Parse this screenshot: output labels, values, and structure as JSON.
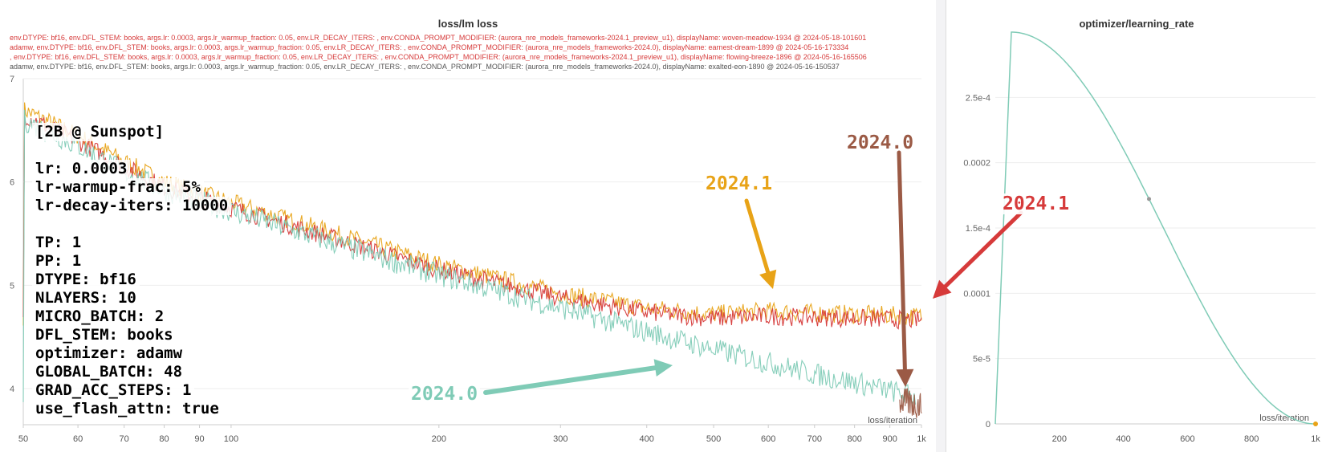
{
  "left_panel": {
    "title": "loss/lm loss",
    "legend": [
      {
        "text": "env.DTYPE: bf16, env.DFL_STEM: books, args.lr: 0.0003, args.lr_warmup_fraction: 0.05, env.LR_DECAY_ITERS: , env.CONDA_PROMPT_MODIFIER: (aurora_nre_models_frameworks-2024.1_preview_u1), displayName: woven-meadow-1934 @ 2024-05-18-101601",
        "color": "#d63a3a"
      },
      {
        "text": "adamw, env.DTYPE: bf16, env.DFL_STEM: books, args.lr: 0.0003, args.lr_warmup_fraction: 0.05, env.LR_DECAY_ITERS: , env.CONDA_PROMPT_MODIFIER: (aurora_nre_models_frameworks-2024.0), displayName: earnest-dream-1899 @ 2024-05-16-173334",
        "color": "#d63a3a"
      },
      {
        "text": ", env.DTYPE: bf16, env.DFL_STEM: books, args.lr: 0.0003, args.lr_warmup_fraction: 0.05, env.LR_DECAY_ITERS: , env.CONDA_PROMPT_MODIFIER: (aurora_nre_models_frameworks-2024.1_preview_u1), displayName: flowing-breeze-1896 @ 2024-05-16-165506",
        "color": "#d63a3a"
      },
      {
        "text": "adamw, env.DTYPE: bf16, env.DFL_STEM: books, args.lr: 0.0003, args.lr_warmup_fraction: 0.05, env.LR_DECAY_ITERS: , env.CONDA_PROMPT_MODIFIER: (aurora_nre_models_frameworks-2024.0), displayName: exalted-eon-1890 @ 2024-05-16-150537",
        "color": "#555555"
      }
    ],
    "info_lines": [
      "[2B @ Sunspot]",
      "",
      "lr: 0.0003",
      "lr-warmup-frac: 5%",
      "lr-decay-iters: 10000",
      "",
      "TP: 1",
      "PP: 1",
      "DTYPE: bf16",
      "NLAYERS: 10",
      "MICRO_BATCH: 2",
      "DFL_STEM: books",
      "optimizer: adamw",
      "GLOBAL_BATCH: 48",
      "GRAD_ACC_STEPS: 1",
      "use_flash_attn: true"
    ],
    "annotations": {
      "orange": {
        "text": "2024.1",
        "color": "#e8a317"
      },
      "red": {
        "text": "2024.1",
        "color": "#d63a3a"
      },
      "brown": {
        "text": "2024.0",
        "color": "#9b5a45"
      },
      "teal": {
        "text": "2024.0",
        "color": "#7fcbb6"
      }
    }
  },
  "right_panel": {
    "title": "optimizer/learning_rate"
  },
  "chart_data": [
    {
      "type": "line",
      "title": "loss/lm loss",
      "xlabel": "loss/iteration",
      "ylabel": "",
      "x_scale": "log",
      "xlim": [
        50,
        1000
      ],
      "ylim": [
        3.65,
        7.0
      ],
      "x_ticks": [
        50,
        60,
        70,
        80,
        90,
        100,
        200,
        300,
        400,
        500,
        600,
        700,
        800,
        900,
        1000
      ],
      "x_tick_labels": [
        "50",
        "60",
        "70",
        "80",
        "90",
        "100",
        "200",
        "300",
        "400",
        "500",
        "600",
        "700",
        "800",
        "900",
        "1k"
      ],
      "y_ticks": [
        4,
        5,
        6,
        7
      ],
      "y_tick_labels": [
        "4",
        "5",
        "6",
        "7"
      ],
      "grid": true,
      "series": [
        {
          "color": "#e8a317",
          "x": [
            50,
            60,
            70,
            80,
            100,
            150,
            200,
            300,
            400,
            500,
            600,
            700,
            800,
            900,
            1000
          ],
          "y": [
            6.7,
            6.45,
            6.2,
            6.0,
            5.8,
            5.45,
            5.2,
            4.92,
            4.78,
            4.72,
            4.75,
            4.73,
            4.72,
            4.71,
            4.7
          ]
        },
        {
          "color": "#d63a3a",
          "x": [
            50,
            60,
            70,
            80,
            100,
            150,
            200,
            300,
            400,
            500,
            600,
            700,
            800,
            900,
            1000
          ],
          "y": [
            6.65,
            6.4,
            6.15,
            5.95,
            5.75,
            5.4,
            5.15,
            4.88,
            4.74,
            4.68,
            4.7,
            4.69,
            4.68,
            4.67,
            4.66
          ]
        },
        {
          "color": "#7fcbb6",
          "x": [
            50,
            60,
            70,
            80,
            100,
            150,
            200,
            300,
            400,
            500,
            600,
            700,
            800,
            900,
            980
          ],
          "y": [
            6.6,
            6.35,
            6.1,
            5.92,
            5.72,
            5.35,
            5.1,
            4.78,
            4.55,
            4.38,
            4.25,
            4.14,
            4.06,
            3.98,
            3.92
          ]
        },
        {
          "color": "#9b5a45",
          "x": [
            930,
            960,
            990,
            1000
          ],
          "y": [
            3.88,
            3.86,
            3.84,
            3.84
          ]
        }
      ]
    },
    {
      "type": "line",
      "title": "optimizer/learning_rate",
      "xlabel": "loss/iteration",
      "ylabel": "",
      "xlim": [
        0,
        1000
      ],
      "ylim": [
        0,
        0.0003
      ],
      "x_ticks": [
        200,
        400,
        600,
        800,
        1000
      ],
      "x_tick_labels": [
        "200",
        "400",
        "600",
        "800",
        "1k"
      ],
      "y_ticks": [
        0,
        5e-05,
        0.0001,
        0.00015,
        0.0002,
        0.00025
      ],
      "y_tick_labels": [
        "0",
        "5e-5",
        "0.0001",
        "1.5e-4",
        "0.0002",
        "2.5e-4"
      ],
      "grid": true,
      "series": [
        {
          "color": "#7fcbb6",
          "warmup_end": 50,
          "peak": 0.0003,
          "decay_end": 1000
        }
      ]
    }
  ]
}
